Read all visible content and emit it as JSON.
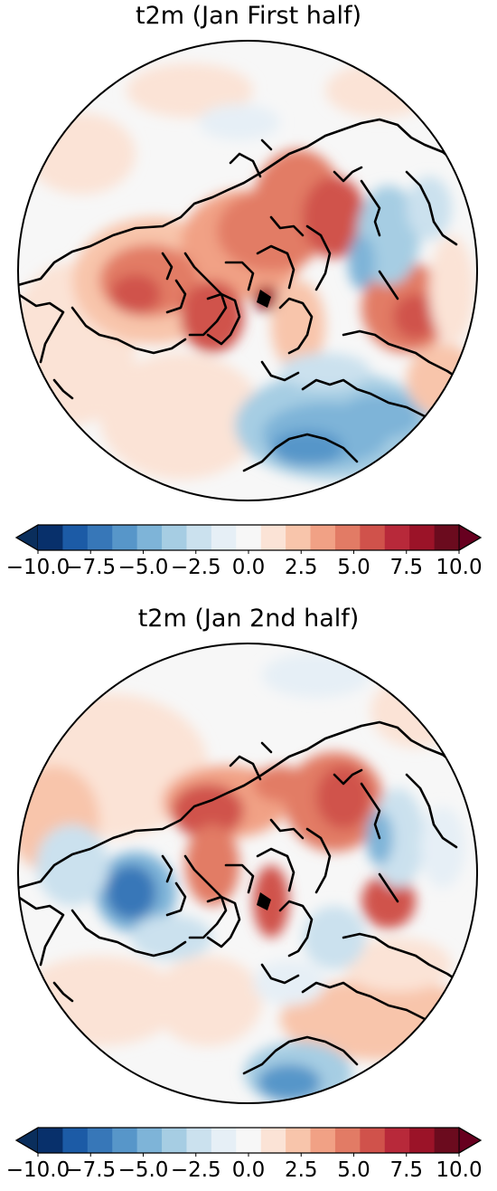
{
  "panels": [
    {
      "title": "t2m (Jan First half)"
    },
    {
      "title": "t2m (Jan 2nd half)"
    }
  ],
  "colorbar": {
    "colors": [
      "#08306b",
      "#1c5ba6",
      "#3777b8",
      "#5796c9",
      "#7eb4d8",
      "#a6cde3",
      "#cbe1ee",
      "#e6eff6",
      "#f7f7f7",
      "#fbe3d6",
      "#f8c5ab",
      "#f1a185",
      "#e27b65",
      "#d0524b",
      "#b8293a",
      "#9b1328",
      "#6b0b1e"
    ],
    "under_color": "#0a2e5c",
    "over_color": "#67001f",
    "ticks": [
      -10.0,
      -7.5,
      -5.0,
      -2.5,
      0.0,
      2.5,
      5.0,
      7.5,
      10.0
    ],
    "tick_labels": [
      "−10.0",
      "−7.5",
      "−5.0",
      "−2.5",
      "0.0",
      "2.5",
      "5.0",
      "7.5",
      "10.0"
    ],
    "min": -10.0,
    "max": 10.0
  }
}
